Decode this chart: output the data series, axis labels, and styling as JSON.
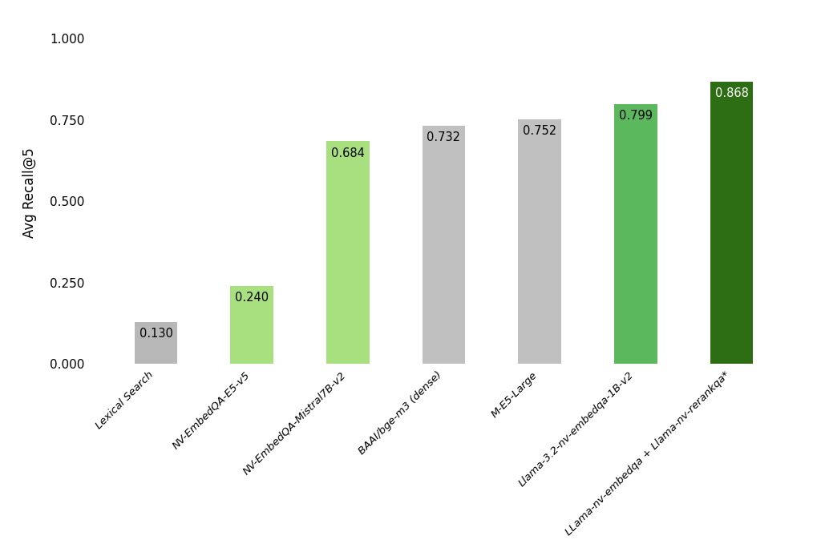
{
  "categories": [
    "Lexical Search",
    "NV-EmbedQA-E5-v5",
    "NV-EmbedQA-Mistral7B-v2",
    "BAAI/bge-m3 (dense)",
    "M-E5-Large",
    "Llama-3.2-nv-embedqa-1B-v2",
    "LLama-nv-embedqa + Llama-nv-rerankqa*"
  ],
  "values": [
    0.13,
    0.24,
    0.684,
    0.732,
    0.752,
    0.799,
    0.868
  ],
  "bar_colors": [
    "#b8b8b8",
    "#a8e080",
    "#a8e080",
    "#c0c0c0",
    "#c0c0c0",
    "#5cb85c",
    "#2d6e14"
  ],
  "value_colors": [
    "#000000",
    "#000000",
    "#000000",
    "#000000",
    "#000000",
    "#000000",
    "#ffffff"
  ],
  "ylabel": "Avg Recall@5",
  "ylim": [
    0.0,
    1.05
  ],
  "yticks": [
    0.0,
    0.25,
    0.5,
    0.75,
    1.0
  ],
  "background_color": "#ffffff",
  "bar_width": 0.45,
  "figsize": [
    10.24,
    6.99
  ],
  "dpi": 100
}
